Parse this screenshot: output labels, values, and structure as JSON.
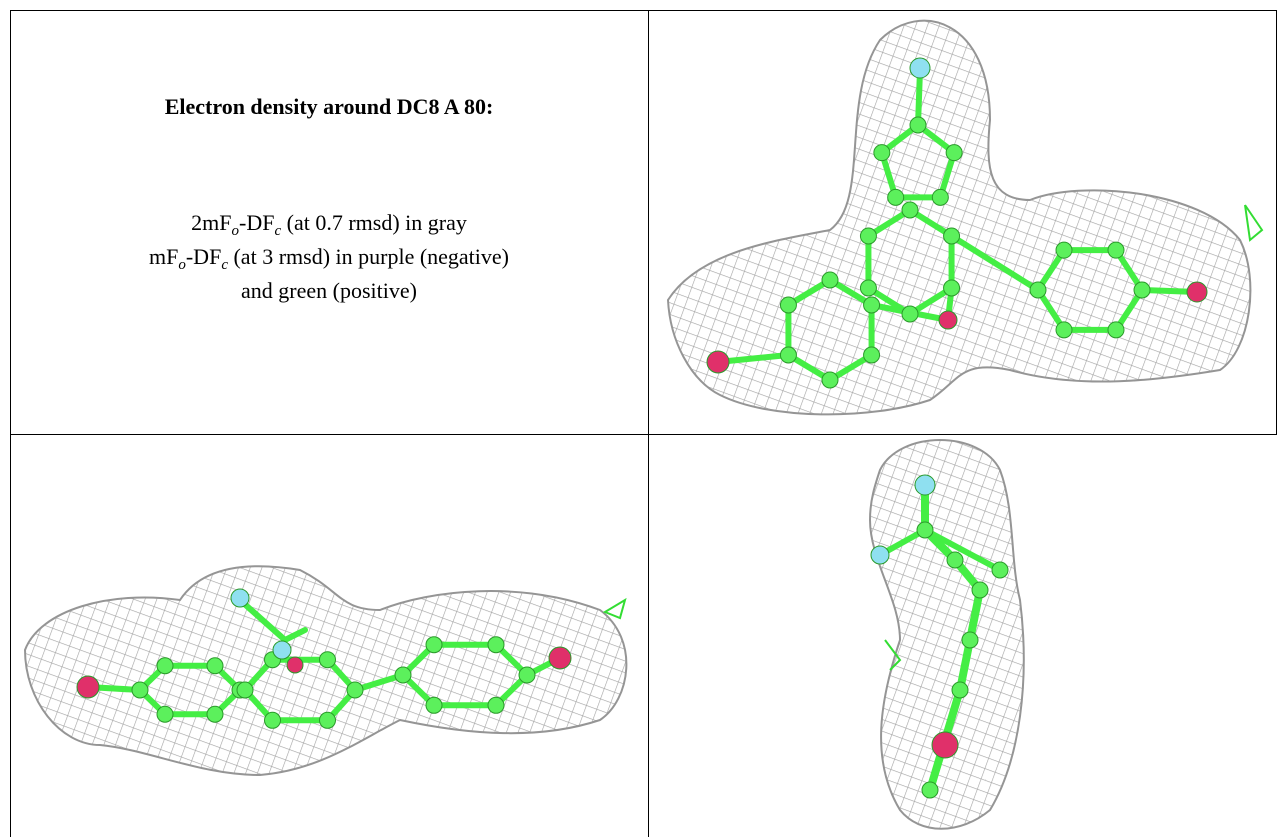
{
  "header": {
    "title": "Electron density around DC8 A 80:"
  },
  "legend_lines": [
    [
      "2mF",
      "o",
      "-DF",
      "c",
      " (at 0.7 rmsd) in gray"
    ],
    [
      "mF",
      "o",
      "-DF",
      "c",
      " (at 3 rmsd) in purple (negative)"
    ],
    [
      "and green (positive)"
    ]
  ]
}
